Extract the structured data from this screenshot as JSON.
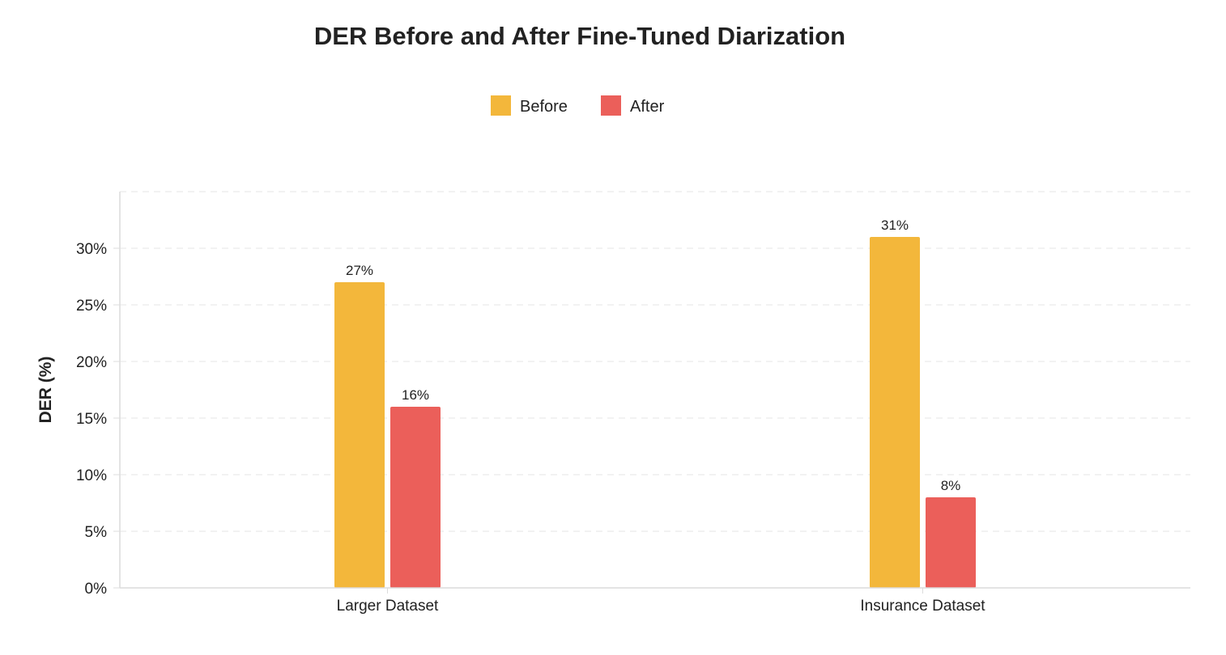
{
  "chart_data": {
    "type": "bar",
    "title": "DER Before and After Fine-Tuned Diarization",
    "xlabel": "",
    "ylabel": "DER (%)",
    "categories": [
      "Larger Dataset",
      "Insurance Dataset"
    ],
    "series": [
      {
        "name": "Before",
        "color": "#F3B73B",
        "values": [
          27,
          31
        ],
        "labels": [
          "27%",
          "31%"
        ]
      },
      {
        "name": "After",
        "color": "#EB5F5A",
        "values": [
          16,
          8
        ],
        "labels": [
          "16%",
          "8%"
        ]
      }
    ],
    "ylim": [
      0,
      35
    ],
    "yticks": [
      0,
      5,
      10,
      15,
      20,
      25,
      30
    ],
    "ytick_labels": [
      "0%",
      "5%",
      "10%",
      "15%",
      "20%",
      "25%",
      "30%"
    ],
    "grid": true,
    "legend": "top-center"
  }
}
